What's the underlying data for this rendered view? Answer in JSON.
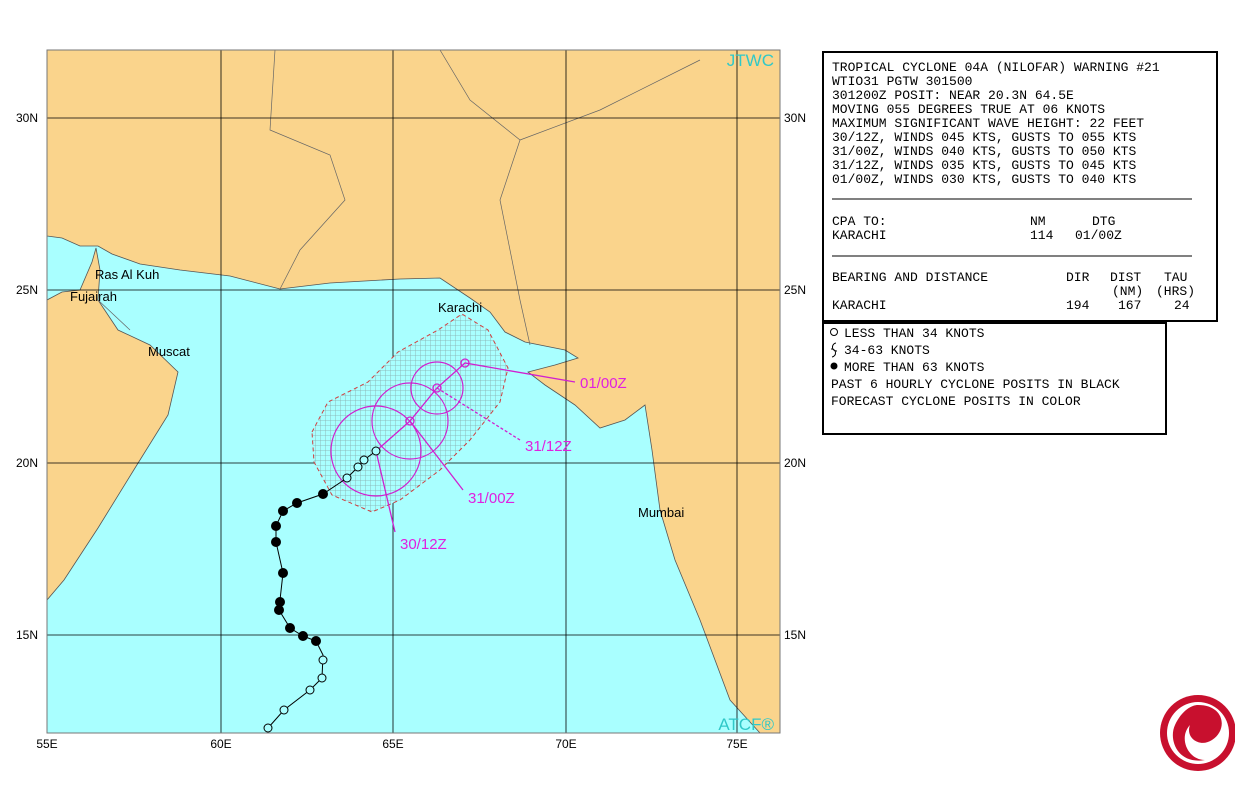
{
  "map": {
    "agency": "JTWC",
    "source": "ATCF®",
    "lat_labels": [
      "30N",
      "25N",
      "20N",
      "15N"
    ],
    "lon_labels": [
      "55E",
      "60E",
      "65E",
      "70E",
      "75E"
    ],
    "places": [
      "Ras Al Kuh",
      "Fujairah",
      "Muscat",
      "Karachi",
      "Mumbai"
    ],
    "forecast_labels": [
      "01/00Z",
      "31/12Z",
      "31/00Z",
      "30/12Z"
    ]
  },
  "warning": {
    "lines": [
      "TROPICAL CYCLONE 04A (NILOFAR) WARNING #21",
      "WTIO31 PGTW 301500",
      "301200Z POSIT: NEAR 20.3N 64.5E",
      "MOVING 055 DEGREES TRUE AT 06 KNOTS",
      "MAXIMUM SIGNIFICANT WAVE HEIGHT: 22 FEET",
      "30/12Z, WINDS 045 KTS, GUSTS TO 055 KTS",
      "31/00Z, WINDS 040 KTS, GUSTS TO 050 KTS",
      "31/12Z, WINDS 035 KTS, GUSTS TO 045 KTS",
      "01/00Z, WINDS 030 KTS, GUSTS TO 040 KTS"
    ],
    "cpa": {
      "header": [
        "CPA TO:",
        "NM",
        "DTG"
      ],
      "row": [
        "KARACHI",
        "114",
        "01/00Z"
      ]
    },
    "bearing": {
      "header": [
        "BEARING AND DISTANCE",
        "DIR",
        "DIST",
        "TAU"
      ],
      "units": [
        "(NM)",
        "(HRS)"
      ],
      "row": [
        "KARACHI",
        "194",
        "167",
        "24"
      ]
    }
  },
  "legend": {
    "lines": [
      "LESS THAN 34 KNOTS",
      "34-63 KNOTS",
      "MORE THAN 63 KNOTS",
      "PAST 6 HOURLY CYCLONE POSITS IN BLACK",
      "FORECAST CYCLONE POSITS IN COLOR"
    ]
  }
}
